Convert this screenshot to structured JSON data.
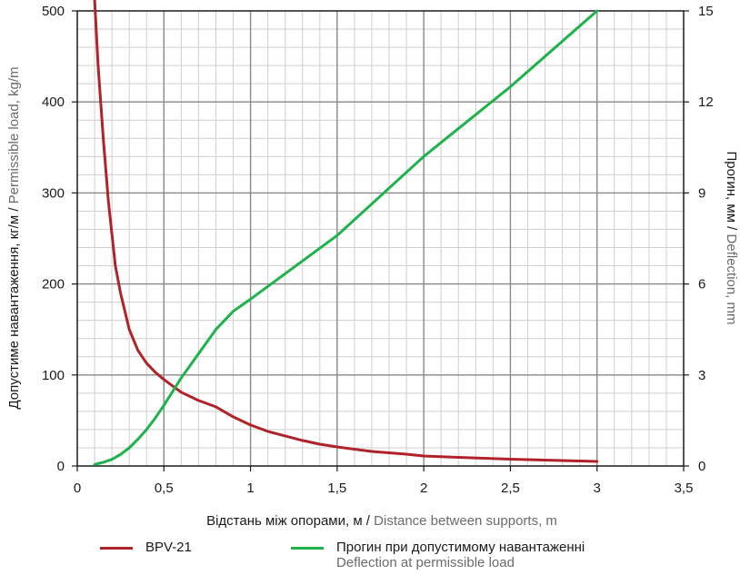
{
  "chart_data": {
    "type": "line",
    "x": {
      "label_dark": "Відстань між опорами, м / ",
      "label_muted": "Distance between supports, m",
      "range": [
        0,
        3.5
      ],
      "ticks": [
        0,
        0.5,
        1,
        1.5,
        2,
        2.5,
        3,
        3.5
      ],
      "tick_labels": [
        "0",
        "0,5",
        "1",
        "1,5",
        "2",
        "2,5",
        "3",
        "3,5"
      ],
      "minor_step": 0.1
    },
    "y_left": {
      "label_dark": "Допустиме навантаження, кг/м / ",
      "label_muted": "Permissible load, kg/m",
      "range": [
        0,
        500
      ],
      "ticks": [
        0,
        100,
        200,
        300,
        400,
        500
      ],
      "tick_labels": [
        "0",
        "100",
        "200",
        "300",
        "400",
        "500"
      ],
      "minor_step": 20
    },
    "y_right": {
      "label_dark": "Прогин, мм / ",
      "label_muted": "Deflection, mm",
      "range": [
        0,
        15
      ],
      "ticks": [
        0,
        3,
        6,
        9,
        12,
        15
      ],
      "tick_labels": [
        "0",
        "3",
        "6",
        "9",
        "12",
        "15"
      ]
    },
    "grid": true,
    "series": [
      {
        "name": "BPV-21",
        "axis": "left",
        "color": "#b0232a",
        "x": [
          0.1,
          0.12,
          0.15,
          0.18,
          0.2,
          0.22,
          0.25,
          0.3,
          0.35,
          0.4,
          0.45,
          0.5,
          0.55,
          0.6,
          0.7,
          0.8,
          0.9,
          1.0,
          1.1,
          1.2,
          1.3,
          1.4,
          1.5,
          1.7,
          1.9,
          2.0,
          2.2,
          2.5,
          2.8,
          3.0
        ],
        "y": [
          512,
          440,
          360,
          290,
          255,
          220,
          190,
          150,
          127,
          113,
          103,
          95,
          88,
          81,
          72,
          65,
          54,
          45,
          38,
          33,
          28,
          24,
          21,
          16,
          13,
          11,
          9.5,
          7.5,
          6,
          5
        ]
      },
      {
        "name": "Прогин при допустимому навантаженні",
        "name_sub": "Deflection at permissible load",
        "axis": "right",
        "color": "#1db24b",
        "x": [
          0.1,
          0.15,
          0.2,
          0.25,
          0.3,
          0.35,
          0.4,
          0.45,
          0.5,
          0.55,
          0.6,
          0.65,
          0.7,
          0.75,
          0.8,
          0.85,
          0.9,
          0.95,
          1.0,
          1.5,
          2.0,
          2.5,
          3.0
        ],
        "y": [
          0.05,
          0.12,
          0.22,
          0.38,
          0.6,
          0.88,
          1.2,
          1.58,
          2.0,
          2.45,
          2.9,
          3.3,
          3.7,
          4.1,
          4.5,
          4.8,
          5.1,
          5.3,
          5.5,
          7.6,
          10.2,
          12.5,
          15.0
        ]
      }
    ]
  }
}
